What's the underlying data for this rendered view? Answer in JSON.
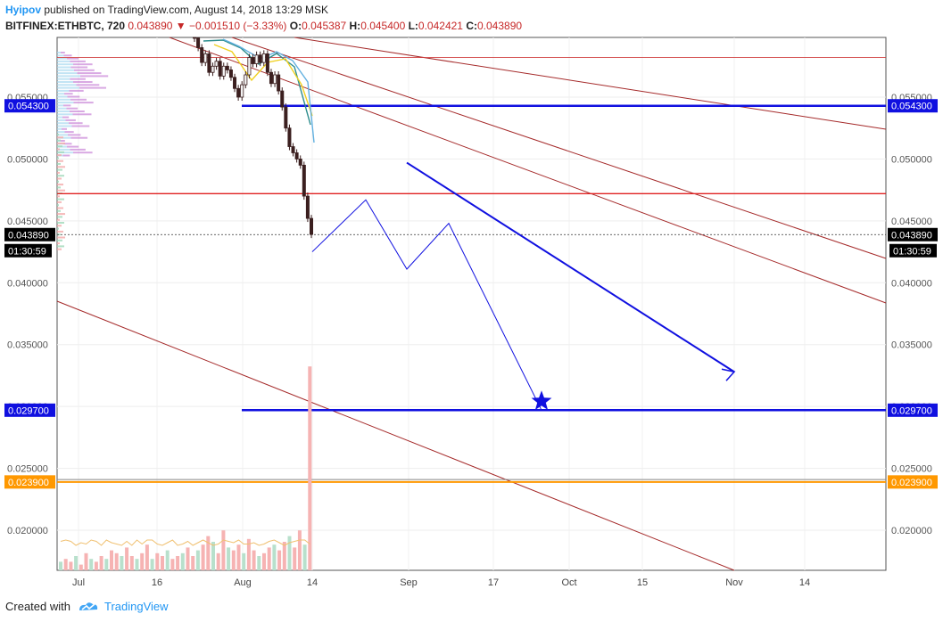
{
  "header": {
    "author": "Hyipov",
    "published_text": " published on TradingView.com, August 14, 2018 13:29 MSK",
    "symbol": "BITFINEX:ETHBTC, 720",
    "last": "0.043890",
    "change": "−0.001510 (−3.33%)",
    "open_label": "O:",
    "open": "0.045387",
    "high_label": "H:",
    "high": "0.045400",
    "low_label": "L:",
    "low": "0.042421",
    "close_label": "C:",
    "close": "0.043890"
  },
  "footer": {
    "created_with": "Created with",
    "brand": "TradingView"
  },
  "colors": {
    "candle": "#3b1f1f",
    "blue_line": "#1010e0",
    "red_line": "#e02020",
    "channel": "#a52a2a",
    "orange": "#ff9800",
    "volume_up": "#b8e0cc",
    "volume_down": "#f6b3b3"
  },
  "chart_data": {
    "type": "candlestick",
    "x_ticks": [
      "Jul",
      "16",
      "Aug",
      "14",
      "Sep",
      "17",
      "Oct",
      "15",
      "Nov",
      "14"
    ],
    "y_ticks": [
      "0.055000",
      "0.050000",
      "0.045000",
      "0.040000",
      "0.035000",
      "0.030000",
      "0.025000",
      "0.020000"
    ],
    "ylim": [
      0.0175,
      0.0595
    ],
    "price_tags": [
      {
        "value": 0.0543,
        "label": "0.054300",
        "color": "#1010e0"
      },
      {
        "value": 0.04389,
        "label": "0.043890",
        "color": "#000000"
      },
      {
        "value": 0.0297,
        "label": "0.029700",
        "color": "#1010e0"
      },
      {
        "value": 0.0239,
        "label": "0.023900",
        "color": "#ff9800"
      }
    ],
    "countdown": "01:30:59",
    "candles_close": [
      0.0598,
      0.059,
      0.0578,
      0.0585,
      0.057,
      0.0575,
      0.0579,
      0.0567,
      0.0575,
      0.0572,
      0.0566,
      0.0557,
      0.055,
      0.056,
      0.0568,
      0.0582,
      0.0577,
      0.0584,
      0.0578,
      0.0585,
      0.057,
      0.0561,
      0.0568,
      0.0555,
      0.0542,
      0.0525,
      0.051,
      0.0505,
      0.05,
      0.0495,
      0.047,
      0.0452,
      0.0439
    ],
    "horizontal_levels": [
      {
        "value": 0.0543,
        "style": "blue"
      },
      {
        "value": 0.0297,
        "style": "blue"
      },
      {
        "value": 0.0472,
        "style": "red"
      },
      {
        "value": 0.0582,
        "style": "thin-red"
      },
      {
        "value": 0.0239,
        "style": "orange"
      },
      {
        "value": 0.0241,
        "style": "gray"
      }
    ],
    "forecast_path": [
      [
        "Aug 14",
        0.0425
      ],
      [
        "Aug 26",
        0.0467
      ],
      [
        "Sep 1",
        0.0411
      ],
      [
        "Sep 8",
        0.0448
      ],
      [
        "Sep 26",
        0.0297
      ]
    ],
    "trend_arrow": [
      [
        "Sep 1",
        0.0497
      ],
      [
        "Nov 1",
        0.0328
      ]
    ],
    "volume": [
      3,
      4,
      3,
      5,
      2,
      6,
      4,
      3,
      5,
      4,
      7,
      6,
      5,
      8,
      5,
      4,
      6,
      9,
      4,
      6,
      5,
      7,
      4,
      5,
      6,
      8,
      5,
      7,
      9,
      12,
      10,
      6,
      14,
      8,
      7,
      9,
      6,
      11,
      7,
      5,
      6,
      8,
      9,
      7,
      10,
      12,
      8,
      14,
      9,
      11
    ]
  }
}
